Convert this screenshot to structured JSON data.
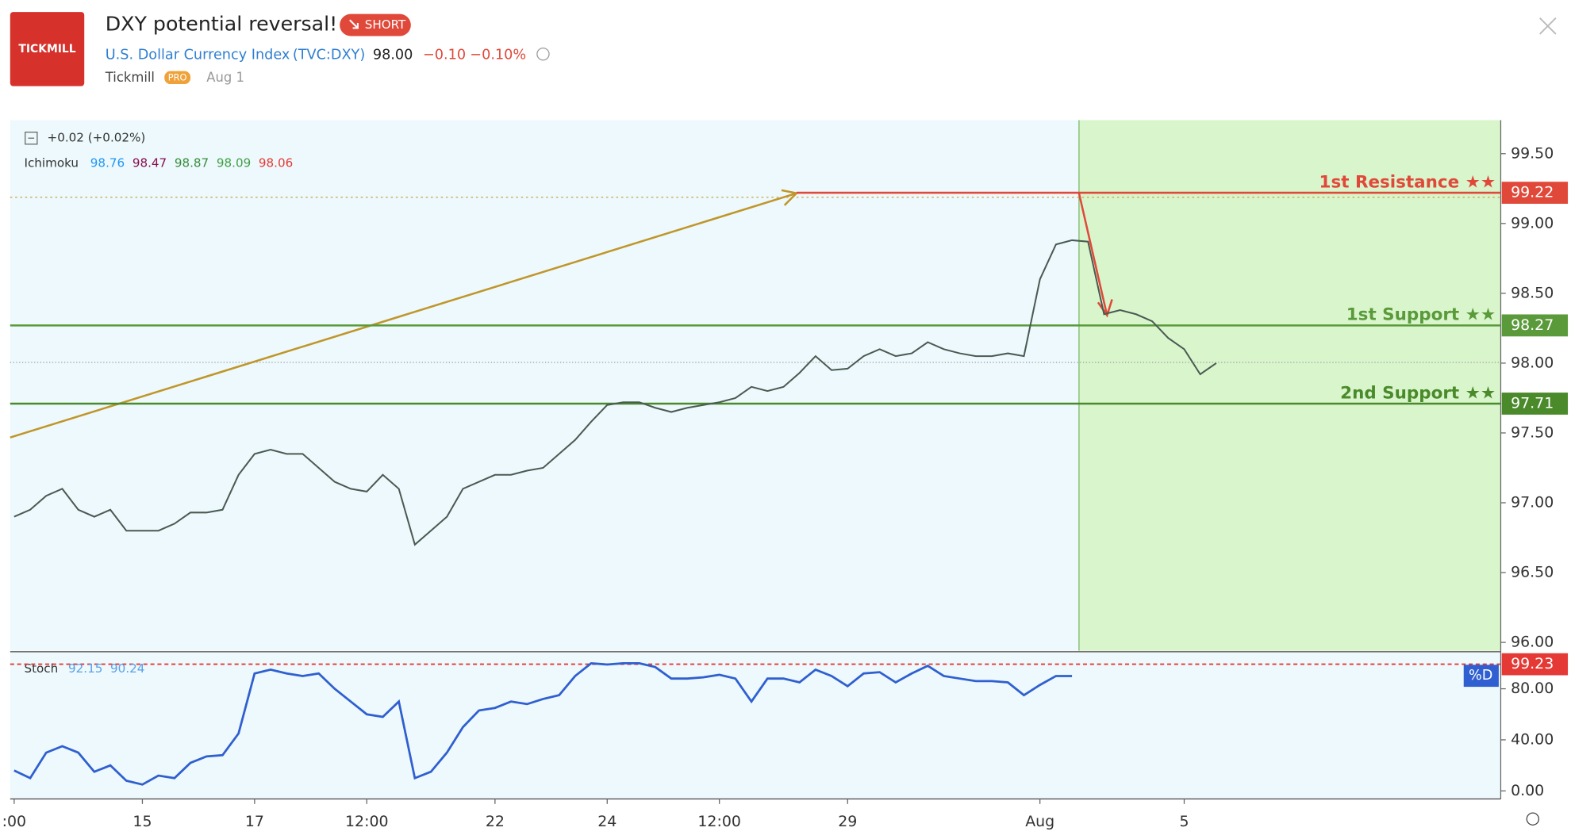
{
  "header": {
    "logo": "TICKMILL",
    "title": "DXY potential reversal!",
    "badge": "SHORT",
    "symbol": "U.S. Dollar Currency Index",
    "ticker": "(TVC:DXY)",
    "price": "98.00",
    "change": "−0.10",
    "change_pct": "−0.10%",
    "author": "Tickmill",
    "author_badge": "PRO",
    "date": "Aug 1"
  },
  "chart_data": [
    {
      "type": "line",
      "legend": "+0.02 (+0.02%)",
      "indicator": {
        "name": "Ichimoku",
        "values": [
          98.76,
          98.47,
          98.87,
          98.09,
          98.06
        ],
        "colors": [
          "#2196f3",
          "#880e4f",
          "#388e3c",
          "#43a047",
          "#e53935"
        ]
      },
      "color": "#4a5a52",
      "categories": [
        ":00",
        null,
        null,
        null,
        null,
        null,
        null,
        null,
        "15",
        null,
        null,
        null,
        null,
        null,
        null,
        "17",
        null,
        null,
        null,
        null,
        null,
        null,
        "12:00",
        null,
        null,
        null,
        null,
        null,
        null,
        null,
        "22",
        null,
        null,
        null,
        null,
        null,
        null,
        "24",
        null,
        null,
        null,
        null,
        null,
        null,
        "12:00",
        null,
        null,
        null,
        null,
        null,
        null,
        null,
        "29",
        null,
        null,
        null,
        null,
        null,
        null,
        null,
        null,
        null,
        null,
        null,
        "Aug",
        null,
        null,
        null,
        null,
        null,
        null,
        null,
        null,
        "5",
        null,
        null,
        null,
        null,
        null,
        null,
        null,
        null,
        null,
        null,
        null,
        null,
        null,
        null,
        null,
        null,
        null,
        null,
        null
      ],
      "values": [
        96.9,
        96.95,
        97.05,
        97.1,
        96.95,
        96.9,
        96.95,
        96.8,
        96.8,
        96.8,
        96.85,
        96.93,
        96.93,
        96.95,
        97.2,
        97.35,
        97.38,
        97.35,
        97.35,
        97.25,
        97.15,
        97.1,
        97.08,
        97.2,
        97.1,
        96.7,
        96.8,
        96.9,
        97.1,
        97.15,
        97.2,
        97.2,
        97.23,
        97.25,
        97.35,
        97.45,
        97.58,
        97.7,
        97.72,
        97.72,
        97.68,
        97.65,
        97.68,
        97.7,
        97.72,
        97.75,
        97.83,
        97.8,
        97.83,
        97.93,
        98.05,
        97.95,
        97.96,
        98.05,
        98.1,
        98.05,
        98.07,
        98.15,
        98.1,
        98.07,
        98.05,
        98.05,
        98.07,
        98.05,
        98.6,
        98.85,
        98.88,
        98.87,
        98.35,
        98.38,
        98.35,
        98.3,
        98.18,
        98.1,
        97.92,
        98.0,
        null,
        null,
        null,
        null,
        null,
        null,
        null,
        null,
        null,
        null,
        null,
        null,
        null,
        null,
        null,
        null,
        null
      ],
      "ylim": [
        95.94,
        99.74
      ],
      "yticks": [
        {
          "value": 96,
          "label": "96.00"
        },
        {
          "value": 96.5,
          "label": "96.50"
        },
        {
          "value": 97,
          "label": "97.00"
        },
        {
          "value": 97.5,
          "label": "97.50"
        },
        {
          "value": 98,
          "label": "98.00"
        },
        {
          "value": 98.5,
          "label": "98.50"
        },
        {
          "value": 99,
          "label": "99.00"
        },
        {
          "value": 99.5,
          "label": "99.50"
        }
      ],
      "levels": [
        {
          "name": "1st Resistance ★★",
          "value": 99.22,
          "color": "#e0493a"
        },
        {
          "name": "1st Support ★★",
          "value": 98.27,
          "color": "#5a9a3a"
        },
        {
          "name": "2nd Support ★★",
          "value": 97.71,
          "color": "#4a8a2a"
        }
      ]
    },
    {
      "type": "line",
      "name": "Stoch",
      "legend_values": [
        92.15,
        90.24
      ],
      "color": "#2f5fd0",
      "values": [
        16,
        10,
        30,
        35,
        30,
        15,
        20,
        8,
        5,
        12,
        10,
        22,
        27,
        28,
        45,
        92,
        95,
        92,
        90,
        92,
        80,
        70,
        60,
        58,
        70,
        10,
        15,
        30,
        50,
        63,
        65,
        70,
        68,
        72,
        75,
        90,
        100,
        99,
        100,
        100,
        97,
        88,
        88,
        89,
        91,
        88,
        70,
        88,
        88,
        85,
        95,
        90,
        82,
        92,
        93,
        85,
        92,
        98,
        90,
        88,
        86,
        86,
        85,
        75,
        83,
        90,
        90,
        null,
        null,
        null,
        null,
        null,
        null,
        null,
        null,
        null,
        null,
        null,
        null,
        null,
        null,
        null,
        null,
        null,
        null,
        null,
        null,
        null,
        null,
        null,
        null,
        null,
        null
      ],
      "ylim": [
        -6.3,
        108.2
      ],
      "yticks": [
        {
          "value": 0,
          "label": "0.00"
        },
        {
          "value": 40,
          "label": "40.00"
        },
        {
          "value": 80,
          "label": "80.00"
        }
      ],
      "levels": [
        {
          "value": 99.23,
          "color": "#e53935"
        }
      ],
      "badge": "%D"
    }
  ]
}
